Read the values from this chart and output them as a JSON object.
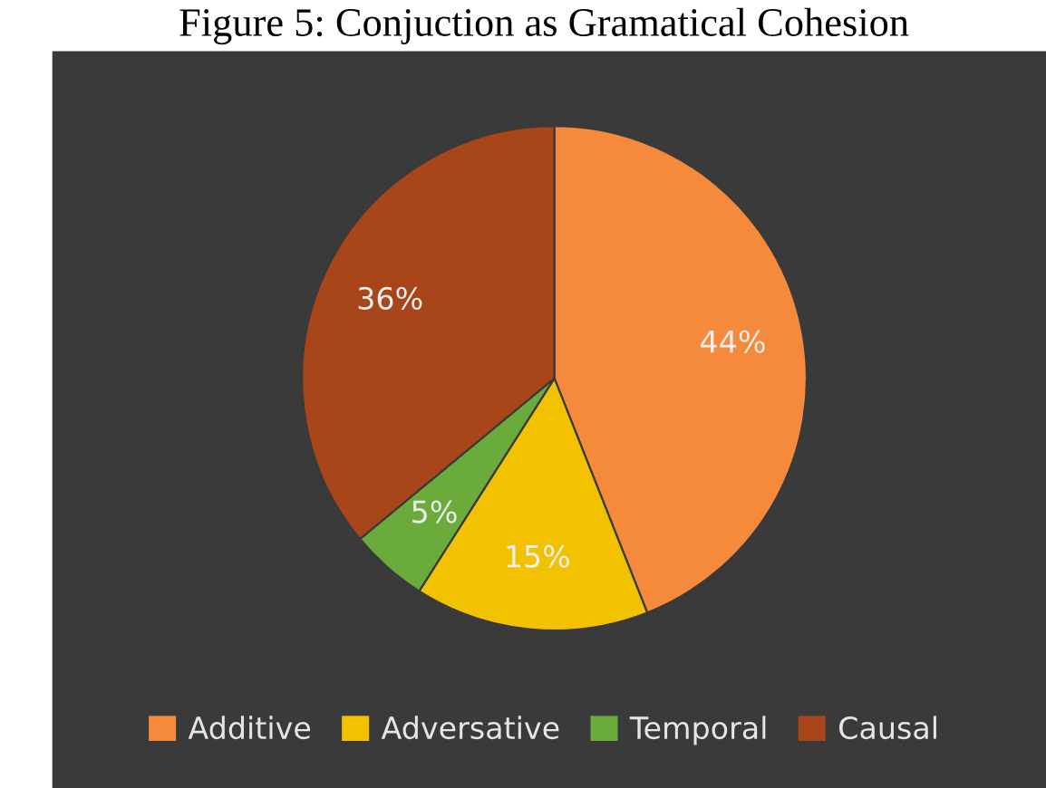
{
  "chart_data": {
    "type": "pie",
    "title": "Figure 5: Conjuction as Gramatical Cohesion",
    "categories": [
      "Additive",
      "Adversative",
      "Temporal",
      "Causal"
    ],
    "values": [
      44,
      15,
      5,
      36
    ],
    "colors": [
      "#f58a3c",
      "#f2c200",
      "#6aab3c",
      "#a8461a"
    ],
    "value_labels": [
      "44%",
      "15%",
      "5%",
      "36%"
    ],
    "legend": "bottom"
  }
}
